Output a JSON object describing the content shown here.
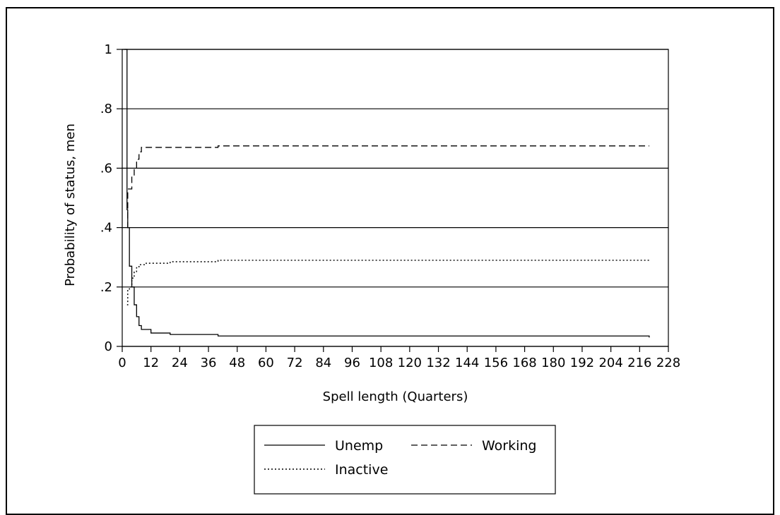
{
  "chart_data": {
    "type": "line",
    "title": "",
    "xlabel": "Spell length (Quarters)",
    "ylabel": "Probability of status, men",
    "xlim": [
      0,
      228
    ],
    "ylim": [
      0,
      1
    ],
    "xticks": [
      0,
      12,
      24,
      36,
      48,
      60,
      72,
      84,
      96,
      108,
      120,
      132,
      144,
      156,
      168,
      180,
      192,
      204,
      216,
      228
    ],
    "yticks": [
      0,
      0.2,
      0.4,
      0.6,
      0.8,
      1
    ],
    "ytick_labels": [
      "0",
      ".2",
      ".4",
      ".6",
      ".8",
      "1"
    ],
    "grid": "horizontal",
    "legend_position": "bottom",
    "step": true,
    "series": [
      {
        "name": "Unemp",
        "style": "solid",
        "points": [
          [
            1,
            1.0
          ],
          [
            2,
            0.46
          ],
          [
            2.3,
            0.4
          ],
          [
            3,
            0.27
          ],
          [
            4,
            0.2
          ],
          [
            5,
            0.14
          ],
          [
            6,
            0.1
          ],
          [
            7,
            0.07
          ],
          [
            8,
            0.057
          ],
          [
            12,
            0.045
          ],
          [
            20,
            0.04
          ],
          [
            40,
            0.035
          ],
          [
            220,
            0.035
          ],
          [
            220,
            0.03
          ]
        ]
      },
      {
        "name": "Working",
        "style": "dashed",
        "points": [
          [
            2,
            0.4
          ],
          [
            2.3,
            0.53
          ],
          [
            4,
            0.57
          ],
          [
            5,
            0.6
          ],
          [
            6,
            0.63
          ],
          [
            7,
            0.655
          ],
          [
            8,
            0.67
          ],
          [
            40,
            0.67
          ],
          [
            40,
            0.675
          ],
          [
            220,
            0.675
          ]
        ]
      },
      {
        "name": "Inactive",
        "style": "dotted",
        "points": [
          [
            2,
            0.14
          ],
          [
            2.3,
            0.19
          ],
          [
            3,
            0.2
          ],
          [
            4,
            0.23
          ],
          [
            5,
            0.25
          ],
          [
            6,
            0.265
          ],
          [
            7,
            0.275
          ],
          [
            10,
            0.28
          ],
          [
            20,
            0.285
          ],
          [
            40,
            0.285
          ],
          [
            40,
            0.29
          ],
          [
            220,
            0.29
          ],
          [
            220,
            0.295
          ]
        ]
      }
    ]
  }
}
